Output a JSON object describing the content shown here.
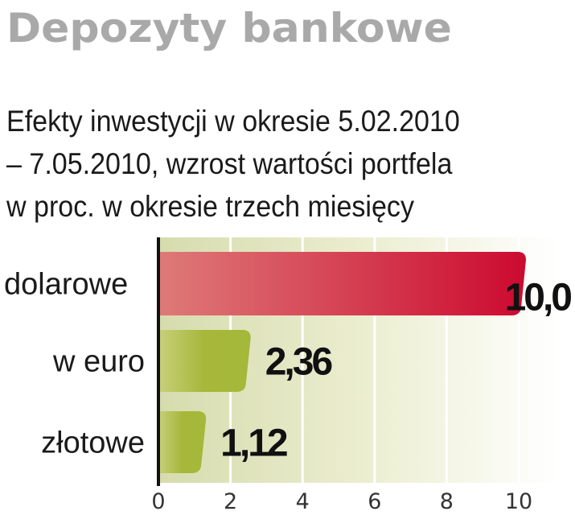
{
  "chart_data": {
    "type": "bar",
    "orientation": "horizontal",
    "title": "Depozyty bankowe",
    "subtitle": [
      "Efekty inwestycji w okresie 5.02.2010",
      "– 7.05.2010, wzrost wartości portfela",
      "w proc. w okresie trzech miesięcy"
    ],
    "categories": [
      "dolarowe",
      "w euro",
      "złotowe"
    ],
    "values": [
      10.0,
      2.36,
      1.12
    ],
    "value_labels": [
      "10,0",
      "2,36",
      "1,12"
    ],
    "colors": [
      "#d0203c",
      "#a4b83a",
      "#a4b83a"
    ],
    "xlim": [
      0,
      10
    ],
    "xticks": [
      0,
      2,
      4,
      6,
      8,
      10
    ],
    "xtick_labels": [
      "0",
      "2",
      "4",
      "6",
      "8",
      "10"
    ],
    "grid": true,
    "xlabel": "",
    "ylabel": ""
  }
}
